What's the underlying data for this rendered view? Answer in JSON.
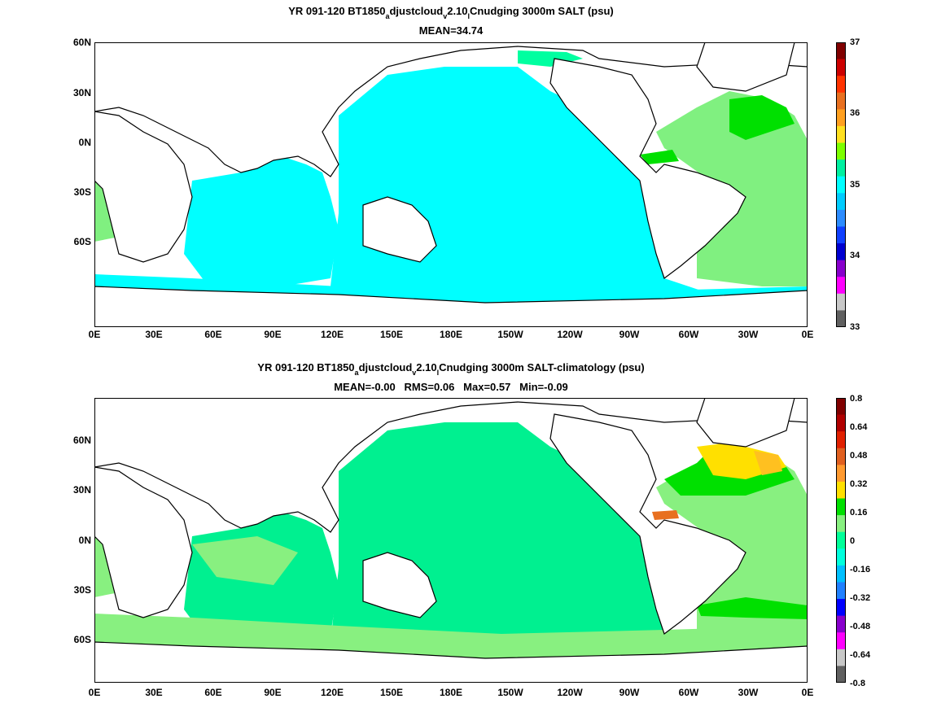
{
  "panels": [
    {
      "title_parts": [
        "YR 091-120 BT1850",
        "a",
        "djustcloud",
        "v",
        "2.10",
        "l",
        "Cnudging 3000m SALT (psu)"
      ],
      "subtitle": "MEAN=34.74",
      "lat_labels": [
        "60N",
        "30N",
        "0N",
        "30S",
        "60S"
      ],
      "lon_labels": [
        "0E",
        "30E",
        "60E",
        "90E",
        "120E",
        "150E",
        "180E",
        "150W",
        "120W",
        "90W",
        "60W",
        "30W",
        "0E"
      ],
      "colorbar": {
        "labels": [
          "37",
          "36",
          "35",
          "34",
          "33"
        ],
        "colors": [
          "#800000",
          "#cc0000",
          "#ff3300",
          "#e87020",
          "#ffa020",
          "#ffe020",
          "#7cff00",
          "#00f0a0",
          "#00ffff",
          "#00ccff",
          "#2c8cff",
          "#1040ff",
          "#0000d0",
          "#8800cc",
          "#ff00ff",
          "#c8c8c8",
          "#606060"
        ]
      }
    },
    {
      "title_parts": [
        "YR 091-120 BT1850",
        "a",
        "djustcloud",
        "v",
        "2.10",
        "l",
        "Cnudging 3000m SALT-climatology (psu)"
      ],
      "subtitle": "MEAN=-0.00   RMS=0.06   Max=0.57   Min=-0.09",
      "lat_labels": [
        "60N",
        "30N",
        "0N",
        "30S",
        "60S"
      ],
      "lon_labels": [
        "0E",
        "30E",
        "60E",
        "90E",
        "120E",
        "150E",
        "180E",
        "150W",
        "120W",
        "90W",
        "60W",
        "30W",
        "0E"
      ],
      "colorbar": {
        "labels": [
          "0.8",
          "0.64",
          "0.48",
          "0.32",
          "0.16",
          "0",
          "-0.16",
          "-0.32",
          "-0.48",
          "-0.64",
          "-0.8"
        ],
        "colors": [
          "#800000",
          "#b00000",
          "#e02000",
          "#e06020",
          "#ff9a30",
          "#ffe000",
          "#00e000",
          "#88f080",
          "#00ff99",
          "#00ffdd",
          "#00c0ff",
          "#2080ff",
          "#0000ff",
          "#8800cc",
          "#ff00ff",
          "#c8c8c8",
          "#606060"
        ]
      }
    }
  ]
}
